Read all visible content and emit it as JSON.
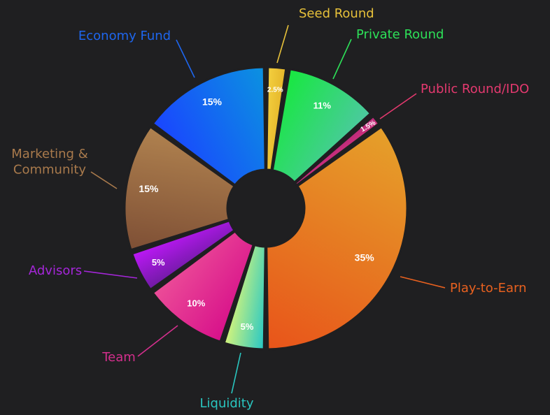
{
  "chart_data": {
    "type": "pie",
    "variant": "donut",
    "title": "",
    "legend": "none",
    "slices": [
      {
        "label": "Seed Round",
        "value": 2.5,
        "value_label": "2.5%",
        "color_from": "#f4d03f",
        "color_to": "#e4b52a",
        "label_color": "#e7c13a"
      },
      {
        "label": "Private Round",
        "value": 11,
        "value_label": "11%",
        "color_from": "#17e83f",
        "color_to": "#4cc9a0",
        "label_color": "#2de058"
      },
      {
        "label": "Public Round/IDO",
        "value": 1.5,
        "value_label": "1.5%",
        "color_from": "#b82a7a",
        "color_to": "#d0307d",
        "label_color": "#e4396f"
      },
      {
        "label": "Play-to-Earn",
        "value": 35,
        "value_label": "35%",
        "color_from": "#e5a02a",
        "color_to": "#e8541a",
        "label_color": "#e9611f"
      },
      {
        "label": "Liquidity",
        "value": 5,
        "value_label": "5%",
        "color_from": "#25c7c6",
        "color_to": "#d6f47a",
        "label_color": "#2ac6c0"
      },
      {
        "label": "Team",
        "value": 10,
        "value_label": "10%",
        "color_from": "#d7108a",
        "color_to": "#ec4d98",
        "label_color": "#d42f8d"
      },
      {
        "label": "Advisors",
        "value": 5,
        "value_label": "5%",
        "color_from": "#6f1aa3",
        "color_to": "#bd18f7",
        "label_color": "#a526d9"
      },
      {
        "label": "Marketing & Community",
        "label_lines": [
          "Marketing &",
          "Community"
        ],
        "value": 15,
        "value_label": "15%",
        "color_from": "#7e4f35",
        "color_to": "#b0824f",
        "label_color": "#a97a4c"
      },
      {
        "label": "Economy Fund",
        "value": 15,
        "value_label": "15%",
        "color_from": "#1a45ff",
        "color_to": "#0b92e0",
        "label_color": "#1e66ee"
      }
    ]
  }
}
